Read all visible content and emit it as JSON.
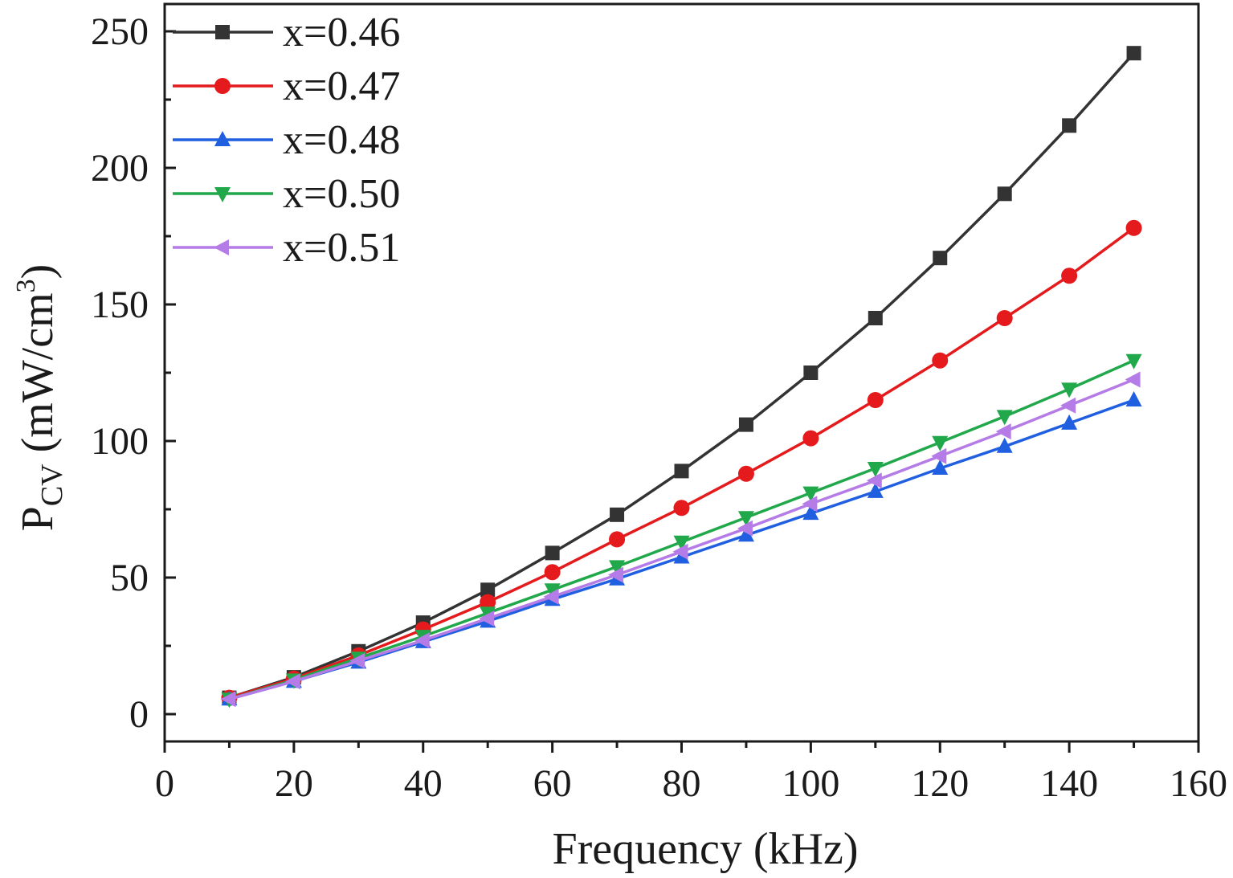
{
  "chart_data": {
    "type": "line",
    "xlabel": "Frequency (kHz)",
    "ylabel": {
      "main": "P",
      "subscript": "CV",
      "unit_prefix": " (mW/cm",
      "superscript": "3",
      "unit_suffix": ")"
    },
    "xlim": [
      0,
      160
    ],
    "ylim": [
      -10,
      260
    ],
    "xticks": [
      0,
      20,
      40,
      60,
      80,
      100,
      120,
      140,
      160
    ],
    "yticks": [
      0,
      50,
      100,
      150,
      200,
      250
    ],
    "grid": false,
    "legend_position": "top-left",
    "x": [
      10,
      20,
      30,
      40,
      50,
      60,
      70,
      80,
      90,
      100,
      110,
      120,
      130,
      140,
      150
    ],
    "series": [
      {
        "name": "x=0.46",
        "color": "#333333",
        "marker": "square",
        "values": [
          6,
          13.5,
          23,
          33.5,
          45.5,
          59,
          73,
          89,
          106,
          125,
          145,
          167,
          190.5,
          215.5,
          242
        ]
      },
      {
        "name": "x=0.47",
        "color": "#e41a1c",
        "marker": "circle",
        "values": [
          6,
          13,
          21.5,
          31,
          41,
          52,
          64,
          75.5,
          88,
          101,
          115,
          129.5,
          145,
          160.5,
          178
        ]
      },
      {
        "name": "x=0.48",
        "color": "#1f5fe0",
        "marker": "triangle-up",
        "values": [
          5.5,
          12,
          19,
          26.5,
          34,
          42,
          49.5,
          57.5,
          65.5,
          73.5,
          81.5,
          90,
          98,
          106.5,
          115
        ]
      },
      {
        "name": "x=0.50",
        "color": "#21a84a",
        "marker": "triangle-down",
        "values": [
          5.5,
          12.5,
          20.5,
          28.5,
          37,
          45.5,
          54,
          63,
          72,
          81,
          90,
          99.5,
          109,
          119,
          129.5
        ]
      },
      {
        "name": "x=0.51",
        "color": "#b57be6",
        "marker": "triangle-left",
        "values": [
          5.5,
          12,
          19.5,
          27,
          35,
          43,
          51,
          59.5,
          68,
          77,
          85.5,
          94.5,
          103.5,
          113,
          122.5
        ]
      }
    ]
  }
}
